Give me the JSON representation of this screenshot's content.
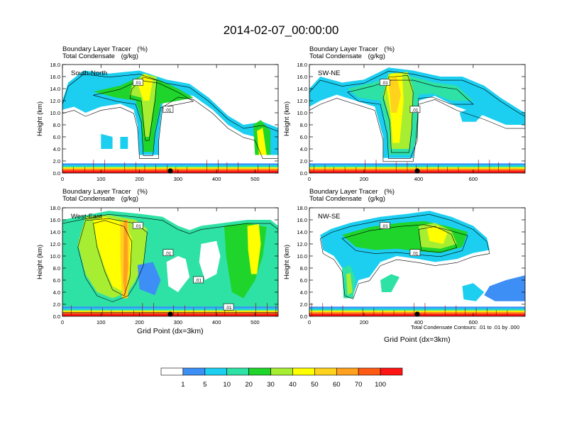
{
  "title": "2014-02-07_00:00:00",
  "chart_data": [
    {
      "type": "heatmap",
      "panel_label": "South-North",
      "field_line1": "Boundary Layer Tracer",
      "field_unit1": "(%)",
      "field_line2": "Total Condensate",
      "field_unit2": "(g/kg)",
      "ylabel": "Height (km)",
      "xlabel": "",
      "ylim": [
        0,
        18
      ],
      "xlim": [
        0,
        560
      ],
      "xticks": [
        "0",
        "100",
        "200",
        "300",
        "400",
        "500"
      ],
      "xtick_values": [
        0,
        100,
        200,
        300,
        400,
        500
      ],
      "yticks": [
        "0.0",
        "2.0",
        "4.0",
        "6.0",
        "8.0",
        "10.0",
        "12.0",
        "14.0",
        "16.0",
        "18.0"
      ],
      "contour_labels": [
        ".01",
        ".01"
      ],
      "marker_x": 280
    },
    {
      "type": "heatmap",
      "panel_label": "SW-NE",
      "field_line1": "Boundary Layer Tracer",
      "field_unit1": "(%)",
      "field_line2": "Total Condensate",
      "field_unit2": "(g/kg)",
      "ylabel": "Height (km)",
      "xlabel": "",
      "ylim": [
        0,
        18
      ],
      "xlim": [
        0,
        790
      ],
      "xticks": [
        "0",
        "200",
        "400",
        "600"
      ],
      "xtick_values": [
        0,
        200,
        400,
        600
      ],
      "yticks": [
        "0.0",
        "2.0",
        "4.0",
        "6.0",
        "8.0",
        "10.0",
        "12.0",
        "14.0",
        "16.0",
        "18.0"
      ],
      "contour_labels": [
        ".01",
        ".01"
      ],
      "marker_x": 395
    },
    {
      "type": "heatmap",
      "panel_label": "West-East",
      "field_line1": "Boundary Layer Tracer",
      "field_unit1": "(%)",
      "field_line2": "Total Condensate",
      "field_unit2": "(g/kg)",
      "ylabel": "Height (km)",
      "xlabel": "Grid Point (dx=3km)",
      "ylim": [
        0,
        18
      ],
      "xlim": [
        0,
        560
      ],
      "xticks": [
        "0",
        "100",
        "200",
        "300",
        "400",
        "500"
      ],
      "xtick_values": [
        0,
        100,
        200,
        300,
        400,
        500
      ],
      "yticks": [
        "0.0",
        "2.0",
        "4.0",
        "6.0",
        "8.0",
        "10.0",
        "12.0",
        "14.0",
        "16.0",
        "18.0"
      ],
      "contour_labels": [
        ".01",
        ".01",
        ".01",
        ".01",
        ".01"
      ],
      "marker_x": 280
    },
    {
      "type": "heatmap",
      "panel_label": "NW-SE",
      "field_line1": "Boundary Layer Tracer",
      "field_unit1": "(%)",
      "field_line2": "Total Condensate",
      "field_unit2": "(g/kg)",
      "ylabel": "Height (km)",
      "xlabel": "Grid Point (dx=3km)",
      "ylim": [
        0,
        18
      ],
      "xlim": [
        0,
        790
      ],
      "xticks": [
        "0",
        "200",
        "400",
        "600"
      ],
      "xtick_values": [
        0,
        200,
        400,
        600
      ],
      "yticks": [
        "0.0",
        "2.0",
        "4.0",
        "6.0",
        "8.0",
        "10.0",
        "12.0",
        "14.0",
        "16.0",
        "18.0"
      ],
      "contour_labels": [
        ".01",
        ".01"
      ],
      "marker_x": 395,
      "contour_note": "Total Condensate Contours: .01 to .01 by .000"
    }
  ],
  "colorbar": {
    "colors": [
      "#ffffff",
      "#3d8ef5",
      "#1ccef0",
      "#2ee1a5",
      "#1fd42a",
      "#a7ee33",
      "#ffff00",
      "#ffd21e",
      "#ffa01e",
      "#ff5a14",
      "#ff1414"
    ],
    "labels": [
      "1",
      "5",
      "10",
      "20",
      "30",
      "40",
      "50",
      "60",
      "70",
      "100"
    ]
  }
}
